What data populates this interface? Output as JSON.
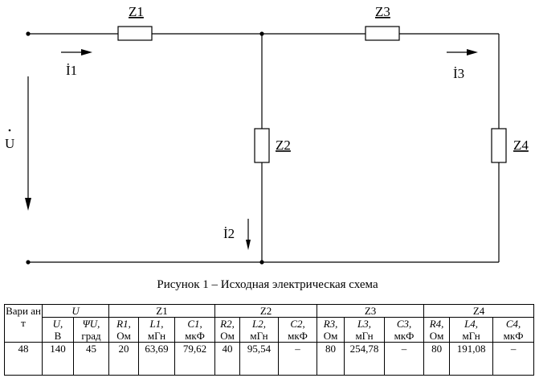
{
  "circuit": {
    "elements": [
      "Z1",
      "Z2",
      "Z3",
      "Z4"
    ],
    "currents": [
      "İ1",
      "İ2",
      "İ3"
    ],
    "voltage": "U"
  },
  "caption": "Рисунок 1 – Исходная электрическая схема",
  "table": {
    "variant_header": "Вари ант",
    "groups": [
      "U",
      "Z1",
      "Z2",
      "Z3",
      "Z4"
    ],
    "subheaders": [
      {
        "sym": "U,",
        "unit": "В"
      },
      {
        "sym": "ΨU,",
        "unit": "град"
      },
      {
        "sym": "R1,",
        "unit": "Ом"
      },
      {
        "sym": "L1,",
        "unit": "мГн"
      },
      {
        "sym": "C1,",
        "unit": "мкФ"
      },
      {
        "sym": "R2,",
        "unit": "Ом"
      },
      {
        "sym": "L2,",
        "unit": "мГн"
      },
      {
        "sym": "C2,",
        "unit": "мкФ"
      },
      {
        "sym": "R3,",
        "unit": "Ом"
      },
      {
        "sym": "L3,",
        "unit": "мГн"
      },
      {
        "sym": "C3,",
        "unit": "мкФ"
      },
      {
        "sym": "R4,",
        "unit": "Ом"
      },
      {
        "sym": "L4,",
        "unit": "мГн"
      },
      {
        "sym": "C4,",
        "unit": "мкФ"
      }
    ],
    "row": [
      "48",
      "140",
      "45",
      "20",
      "63,69",
      "79,62",
      "40",
      "95,54",
      "–",
      "80",
      "254,78",
      "–",
      "80",
      "191,08",
      "–"
    ]
  }
}
